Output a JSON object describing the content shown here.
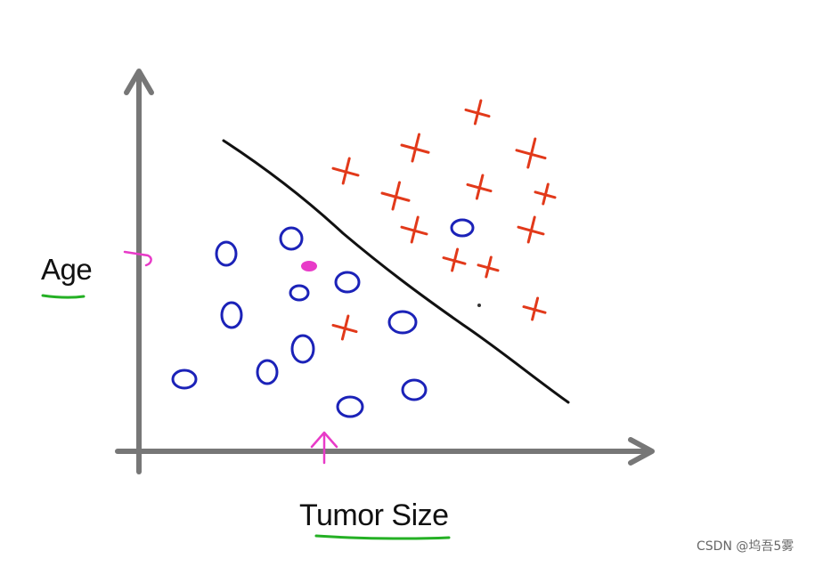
{
  "ylabel": "Age",
  "xlabel": "Tumor Size",
  "watermark": "CSDN @坞吾5雾",
  "colors": {
    "axis": "#777777",
    "positive": "#e2391a",
    "negative": "#1b22b8",
    "boundary": "#111111",
    "highlight": "#e83bc8",
    "underline": "#24b024"
  },
  "icons": {
    "positive": "x-mark-icon",
    "negative": "o-mark-icon"
  }
}
